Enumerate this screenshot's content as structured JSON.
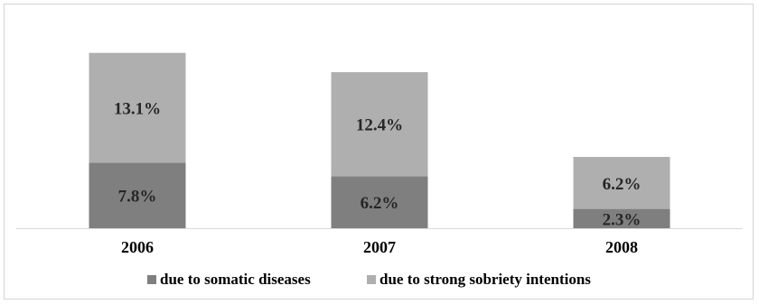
{
  "chart_data": {
    "type": "bar",
    "stacked": true,
    "categories": [
      "2006",
      "2007",
      "2008"
    ],
    "series": [
      {
        "name": "due to somatic diseases",
        "values": [
          7.8,
          6.2,
          2.3
        ],
        "labels": [
          "7.8%",
          "6.2%",
          "2.3%"
        ],
        "color": "#7f7f7f"
      },
      {
        "name": "due to strong sobriety intentions",
        "values": [
          13.1,
          12.4,
          6.2
        ],
        "labels": [
          "13.1%",
          "12.4%",
          "6.2%"
        ],
        "color": "#afafb0"
      }
    ],
    "unit": "%",
    "ylim": [
      0,
      21
    ],
    "grid": false,
    "legend_position": "bottom",
    "axis_color": "#d9d9d9"
  }
}
